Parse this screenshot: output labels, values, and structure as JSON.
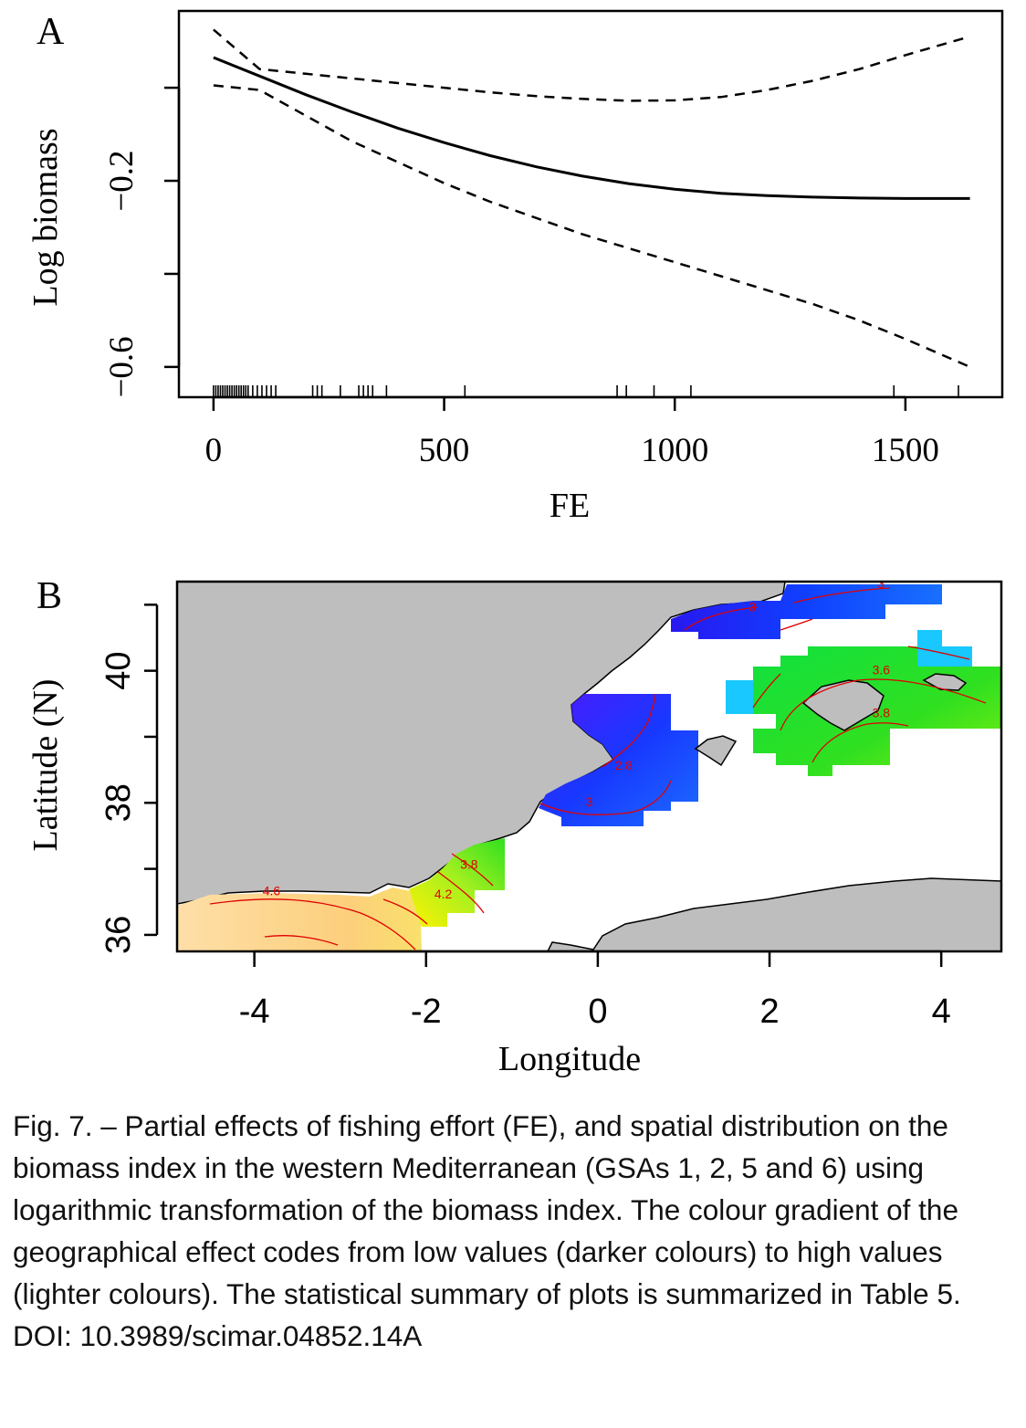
{
  "panel_a": {
    "label": "A",
    "chart_data": {
      "type": "line",
      "xlabel": "FE",
      "ylabel": "Log biomass",
      "xlim": [
        -75,
        1710
      ],
      "ylim": [
        -0.665,
        0.165
      ],
      "x_ticks": [
        0,
        500,
        1000,
        1500
      ],
      "x_tick_labels": [
        "0",
        "500",
        "1000",
        "1500"
      ],
      "y_ticks": [
        0.0,
        -0.2,
        -0.4,
        -0.6
      ],
      "y_tick_labels": [
        "",
        "−0.2",
        "",
        "−0.6"
      ],
      "grid": false,
      "x": [
        0,
        100,
        200,
        300,
        400,
        500,
        600,
        700,
        800,
        900,
        1000,
        1100,
        1200,
        1300,
        1400,
        1500,
        1640
      ],
      "series": [
        {
          "role": "fit",
          "style": "solid",
          "values": [
            0.065,
            0.025,
            -0.015,
            -0.052,
            -0.087,
            -0.118,
            -0.146,
            -0.17,
            -0.19,
            -0.206,
            -0.218,
            -0.227,
            -0.232,
            -0.235,
            -0.237,
            -0.238,
            -0.238
          ]
        },
        {
          "role": "upper",
          "style": "dashed",
          "values": [
            0.125,
            0.04,
            0.03,
            0.02,
            0.01,
            0.0,
            -0.01,
            -0.018,
            -0.024,
            -0.028,
            -0.027,
            -0.02,
            -0.005,
            0.015,
            0.04,
            0.07,
            0.11
          ]
        },
        {
          "role": "lower",
          "style": "dashed",
          "values": [
            0.005,
            -0.005,
            -0.06,
            -0.115,
            -0.16,
            -0.205,
            -0.245,
            -0.28,
            -0.315,
            -0.345,
            -0.375,
            -0.405,
            -0.435,
            -0.465,
            -0.5,
            -0.54,
            -0.6
          ]
        }
      ],
      "rug": [
        0,
        5,
        10,
        15,
        20,
        25,
        30,
        35,
        40,
        45,
        50,
        55,
        60,
        65,
        70,
        75,
        85,
        95,
        105,
        115,
        125,
        135,
        215,
        225,
        235,
        275,
        315,
        325,
        335,
        345,
        375,
        545,
        875,
        895,
        955,
        1035,
        1475,
        1615
      ]
    }
  },
  "panel_b": {
    "label": "B",
    "chart_data": {
      "type": "heatmap",
      "xlabel": "Longitude",
      "ylabel": "Latitude (N)",
      "xlim": [
        -4.9,
        4.7
      ],
      "ylim": [
        35.75,
        41.35
      ],
      "x_ticks": [
        -4,
        -2,
        0,
        2,
        4
      ],
      "x_tick_labels": [
        "-4",
        "-2",
        "0",
        "2",
        "4"
      ],
      "y_ticks": [
        36,
        37,
        38,
        39,
        40,
        41
      ],
      "y_tick_labels": [
        "36",
        "",
        "38",
        "",
        "40",
        ""
      ],
      "grid": false,
      "contour_labels": [
        {
          "text": "4.6",
          "lon": -3.8,
          "lat": 36.6
        },
        {
          "text": "4.2",
          "lon": -1.8,
          "lat": 36.55
        },
        {
          "text": "3.8",
          "lon": -1.5,
          "lat": 37.0
        },
        {
          "text": "3",
          "lon": -0.1,
          "lat": 37.95
        },
        {
          "text": "2.8",
          "lon": 0.3,
          "lat": 38.5
        },
        {
          "text": "3",
          "lon": 1.8,
          "lat": 40.9
        },
        {
          "text": "3",
          "lon": 3.3,
          "lat": 41.25
        },
        {
          "text": "3.6",
          "lon": 3.3,
          "lat": 39.95
        },
        {
          "text": "3.8",
          "lon": 3.3,
          "lat": 39.3
        }
      ],
      "colors": {
        "land": "#bebebe",
        "contour": "#e00000",
        "low": "#3030ff",
        "high": "#ffe2a6"
      }
    }
  },
  "caption": "Fig. 7. – Partial effects of fishing effort (FE), and spatial distribution on the biomass index in the western Mediterranean (GSAs 1, 2, 5 and 6) using logarithmic transformation of the biomass index. The colour gradient of the geographical effect codes from low values (darker colours) to high values (lighter colours). The statistical summary of plots is summarized in Table 5. DOI: 10.3989/scimar.04852.14A"
}
